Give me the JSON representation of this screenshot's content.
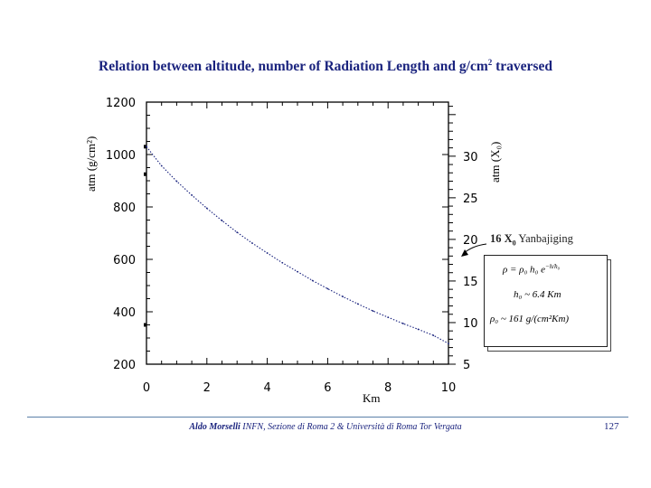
{
  "slide": {
    "title": "Relation between altitude, number of Radiation Length and g/cm",
    "title_sup": "2",
    "title_tail": " traversed",
    "footer_author": "Aldo Morselli",
    "footer_rest": "  INFN, Sezione di Roma 2  &  Università di Roma Tor Vergata",
    "page_number": "127"
  },
  "annotation": {
    "label_prefix": "16 X",
    "label_sub": "0",
    "label_tail": "  Yanbajiging",
    "formula_1": "ρ  =  ρ₀ h₀ e",
    "formula_1_exp": "−h/h₀",
    "formula_2": "h₀ ~ 6.4 Km",
    "formula_3": "ρ₀ ~ 161 g/(cm²Km)"
  },
  "chart_data": {
    "type": "line",
    "xlabel": "Km",
    "ylabel_left": "atm (g/cm²)",
    "ylabel_right": "atm (X₀)",
    "xlim": [
      0,
      10
    ],
    "ylim_left": [
      200,
      1200
    ],
    "ylim_right": [
      5,
      36.5
    ],
    "x_ticks": [
      "0",
      "2",
      "4",
      "6",
      "8",
      "10"
    ],
    "y_ticks_left": [
      "200",
      "400",
      "600",
      "800",
      "1000",
      "1200"
    ],
    "y_ticks_right": [
      "5",
      "10",
      "15",
      "20",
      "25",
      "30"
    ],
    "series": [
      {
        "x": [
          0,
          0.5,
          1,
          1.5,
          2,
          2.5,
          3,
          3.5,
          4,
          4.5,
          5,
          5.5,
          6,
          6.5,
          7,
          7.5,
          8,
          8.5,
          9,
          9.5,
          10
        ],
        "values": [
          1030,
          957,
          898,
          845,
          795,
          748,
          703,
          662,
          624,
          587,
          553,
          519,
          488,
          458,
          430,
          403,
          379,
          355,
          333,
          310,
          279
        ]
      }
    ],
    "annotation_arrow_value_right": 16
  }
}
